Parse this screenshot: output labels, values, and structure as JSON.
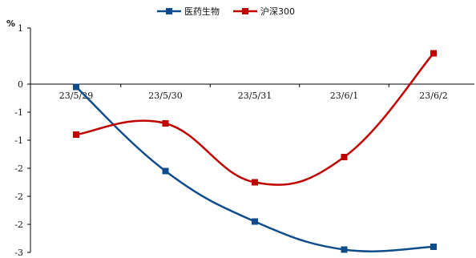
{
  "chart_data": {
    "type": "line",
    "unit": "%",
    "categories": [
      "23/5/29",
      "23/5/30",
      "23/5/31",
      "23/6/1",
      "23/6/2"
    ],
    "series": [
      {
        "name": "医药生物",
        "color": "#0f4c8c",
        "values": [
          -0.05,
          -1.55,
          -2.45,
          -2.95,
          -2.9
        ]
      },
      {
        "name": "沪深300",
        "color": "#c00000",
        "values": [
          -0.9,
          -0.7,
          -1.75,
          -1.3,
          0.55
        ]
      }
    ],
    "ylim": [
      -3,
      1
    ],
    "ytick_values": [
      1,
      0,
      -0.5,
      -1,
      -1.5,
      -2,
      -2.5,
      -3
    ],
    "ytick_labels": [
      "1",
      "0",
      "-1",
      "-1",
      "-2",
      "-2",
      "-2",
      "-3"
    ],
    "legend_position": "top-center",
    "grid": false
  }
}
